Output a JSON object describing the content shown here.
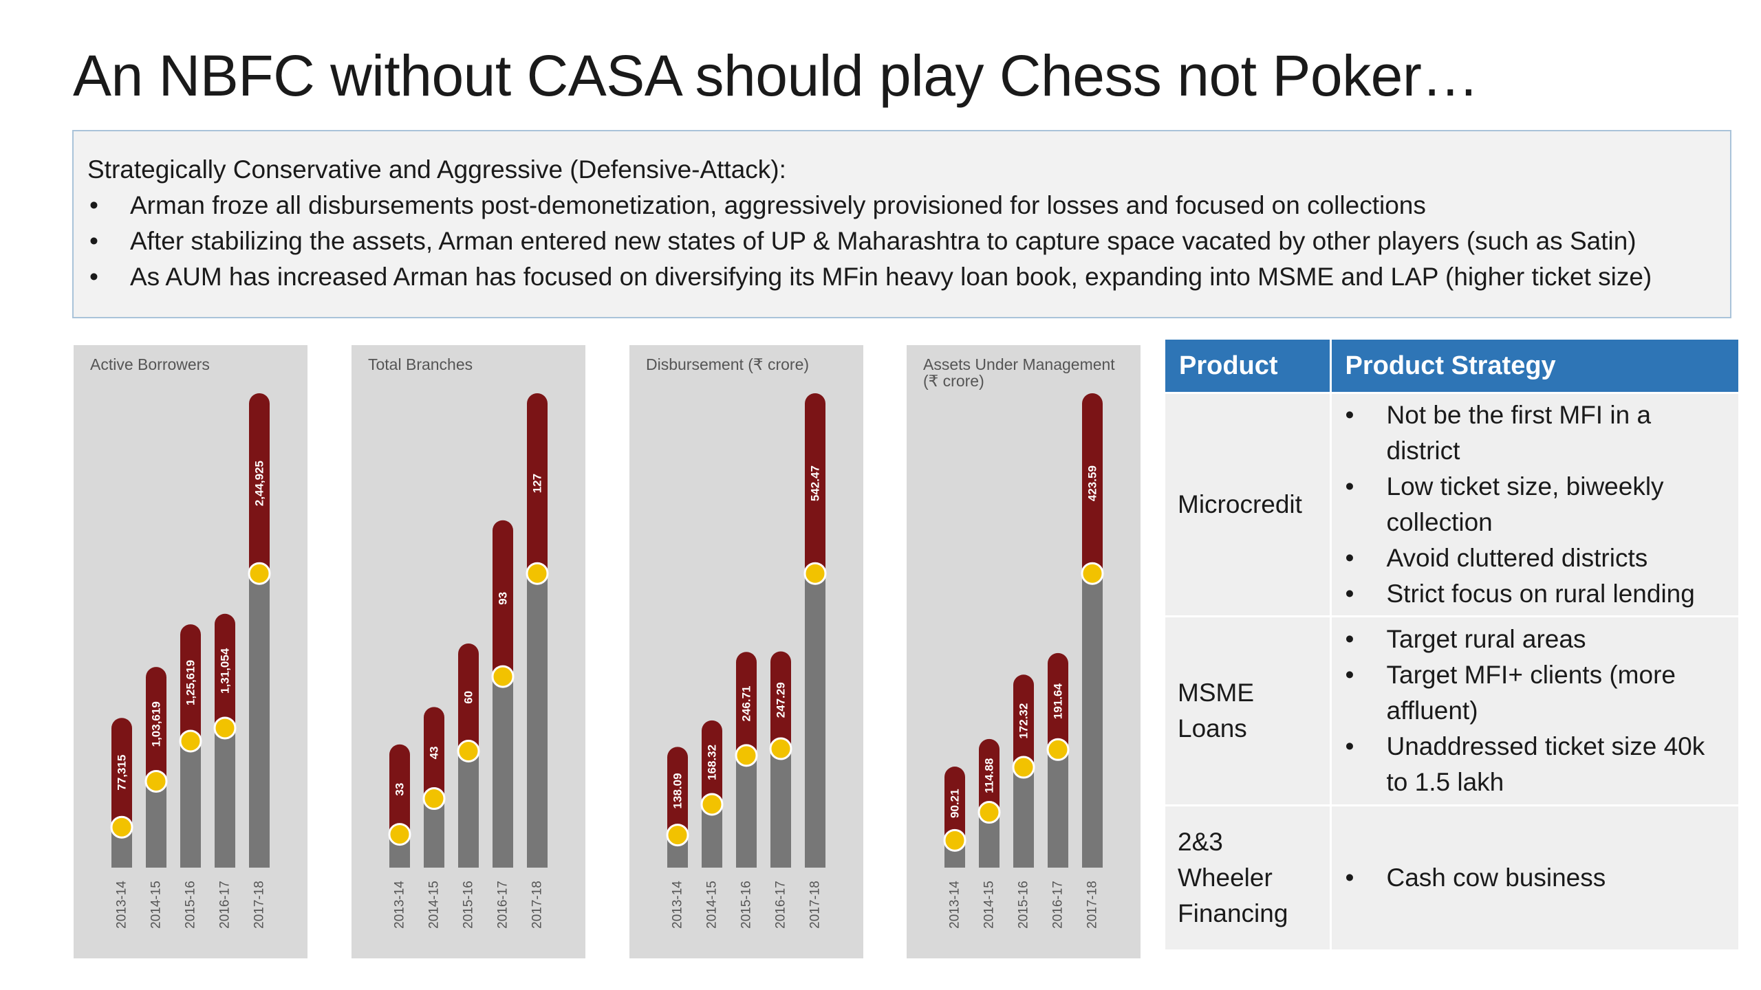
{
  "title": "An NBFC without CASA should play Chess not Poker…",
  "summary": {
    "lead": "Strategically Conservative and Aggressive (Defensive-Attack):",
    "bullets": [
      "Arman froze all disbursements post-demonetization, aggressively provisioned for losses and focused on collections",
      "After stabilizing the assets, Arman entered new states of UP & Maharashtra to capture space vacated by other players (such as Satin)",
      "As AUM has increased Arman has focused on diversifying its MFin heavy loan book, expanding into MSME and LAP (higher ticket size)"
    ]
  },
  "bullet_glyph": "•",
  "colors": {
    "bar_top": "#7b1416",
    "bar_base": "#777777",
    "marker": "#f2c200",
    "panel_bg": "#d9d9d9",
    "table_header": "#2e75b6",
    "table_cell": "#efefef"
  },
  "chart_data": [
    {
      "type": "bar",
      "title": "Active Borrowers",
      "categories": [
        "2013-14",
        "2014-15",
        "2015-16",
        "2016-17",
        "2017-18"
      ],
      "values": [
        77315,
        103619,
        125619,
        131054,
        244925
      ],
      "value_labels": [
        "77,315",
        "1,03,619",
        "1,25,619",
        "1,31,054",
        "2,44,925"
      ]
    },
    {
      "type": "bar",
      "title": "Total Branches",
      "categories": [
        "2013-14",
        "2014-15",
        "2015-16",
        "2016-17",
        "2017-18"
      ],
      "values": [
        33,
        43,
        60,
        93,
        127
      ],
      "value_labels": [
        "33",
        "43",
        "60",
        "93",
        "127"
      ]
    },
    {
      "type": "bar",
      "title": "Disbursement (₹ crore)",
      "categories": [
        "2013-14",
        "2014-15",
        "2015-16",
        "2016-17",
        "2017-18"
      ],
      "values": [
        138.09,
        168.32,
        246.71,
        247.29,
        542.47
      ],
      "value_labels": [
        "138.09",
        "168.32",
        "246.71",
        "247.29",
        "542.47"
      ]
    },
    {
      "type": "bar",
      "title": "Assets Under Management\n(₹ crore)",
      "categories": [
        "2013-14",
        "2014-15",
        "2015-16",
        "2016-17",
        "2017-18"
      ],
      "values": [
        90.21,
        114.88,
        172.32,
        191.64,
        423.59
      ],
      "value_labels": [
        "90.21",
        "114.88",
        "172.32",
        "191.64",
        "423.59"
      ]
    }
  ],
  "strategy_table": {
    "headers": [
      "Product",
      "Product Strategy"
    ],
    "rows": [
      {
        "product": "Microcredit",
        "strategies": [
          "Not be the first MFI in a district",
          "Low ticket size, biweekly collection",
          "Avoid cluttered districts",
          "Strict focus on rural lending"
        ]
      },
      {
        "product": "MSME Loans",
        "strategies": [
          "Target rural areas",
          "Target MFI+ clients (more affluent)",
          "Unaddressed ticket size 40k to 1.5 lakh"
        ]
      },
      {
        "product": "2&3 Wheeler Financing",
        "strategies": [
          "Cash cow business"
        ]
      }
    ]
  }
}
